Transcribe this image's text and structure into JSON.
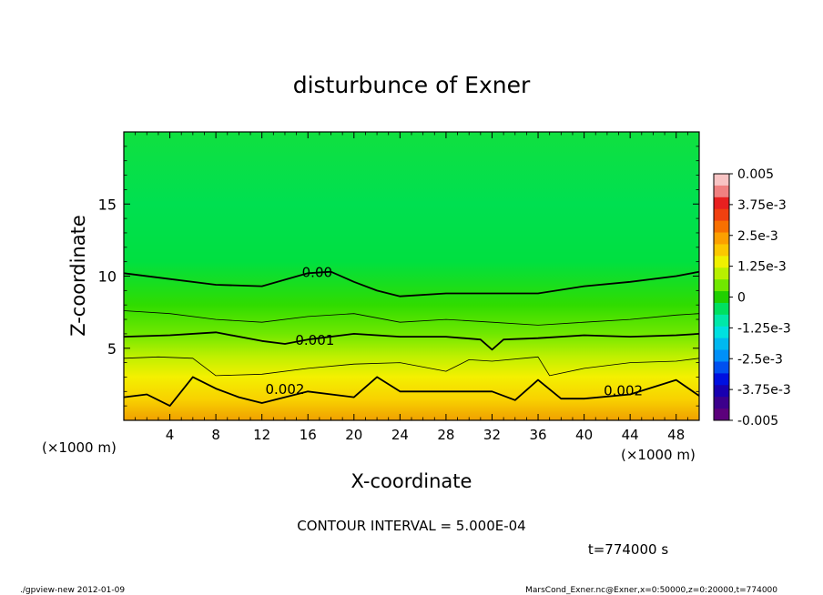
{
  "chart_data": {
    "type": "heatmap",
    "title": "disturbunce of Exner",
    "xlabel": "X-coordinate",
    "ylabel": "Z-coordinate",
    "x_unit": "(×1000 m)",
    "x_ticks": [
      4,
      8,
      12,
      16,
      20,
      24,
      28,
      32,
      36,
      40,
      44,
      48
    ],
    "y_ticks": [
      5,
      10,
      15
    ],
    "xlim": [
      0,
      50
    ],
    "ylim": [
      0,
      20
    ],
    "contour_interval_text": "CONTOUR INTERVAL = 5.000E-04",
    "time_text": "t=774000 s",
    "contour_labels": [
      {
        "text": "0.00",
        "x": 16.8,
        "z": 10.3
      },
      {
        "text": "0.001",
        "x": 16.6,
        "z": 5.6
      },
      {
        "text": "0.002",
        "x": 14.0,
        "z": 2.2
      },
      {
        "text": "0.002",
        "x": 43.4,
        "z": 2.1
      }
    ],
    "colorbar": {
      "labels": [
        "0.005",
        "3.75e-3",
        "2.5e-3",
        "1.25e-3",
        "0",
        "-1.25e-3",
        "-2.5e-3",
        "-3.75e-3",
        "-0.005"
      ],
      "colors": [
        "#f8c4c4",
        "#f08080",
        "#e82020",
        "#f04010",
        "#f87000",
        "#fca000",
        "#fcc800",
        "#f0f000",
        "#b8f000",
        "#70e800",
        "#20d000",
        "#00e060",
        "#00e8a8",
        "#00e0e0",
        "#00b8f0",
        "#0090f8",
        "#0050f0",
        "#0010e0",
        "#1800b0",
        "#3c008c",
        "#5c007c"
      ]
    },
    "contours": [
      {
        "level": 0.0,
        "weight": "bold",
        "x": [
          0,
          4,
          8,
          12,
          16,
          18,
          20,
          22,
          24,
          28,
          32,
          36,
          40,
          44,
          48,
          50
        ],
        "z": [
          10.2,
          9.8,
          9.4,
          9.3,
          10.2,
          10.3,
          9.6,
          9.0,
          8.6,
          8.8,
          8.8,
          8.8,
          9.3,
          9.6,
          10.0,
          10.3
        ]
      },
      {
        "level": 0.0005,
        "weight": "thin",
        "x": [
          0,
          4,
          8,
          12,
          16,
          20,
          24,
          28,
          32,
          36,
          40,
          44,
          48,
          50
        ],
        "z": [
          7.6,
          7.4,
          7.0,
          6.8,
          7.2,
          7.4,
          6.8,
          7.0,
          6.8,
          6.6,
          6.8,
          7.0,
          7.3,
          7.4
        ]
      },
      {
        "level": 0.001,
        "weight": "bold",
        "x": [
          0,
          4,
          8,
          12,
          14,
          16,
          20,
          24,
          28,
          31,
          32,
          33,
          36,
          40,
          44,
          48,
          50
        ],
        "z": [
          5.8,
          5.9,
          6.1,
          5.5,
          5.3,
          5.6,
          6.0,
          5.8,
          5.8,
          5.6,
          4.9,
          5.6,
          5.7,
          5.9,
          5.8,
          5.9,
          6.0
        ]
      },
      {
        "level": 0.0015,
        "weight": "thin",
        "x": [
          0,
          3,
          6,
          8,
          12,
          16,
          20,
          24,
          28,
          30,
          32,
          36,
          37,
          40,
          44,
          48,
          50
        ],
        "z": [
          4.3,
          4.4,
          4.3,
          3.1,
          3.2,
          3.6,
          3.9,
          4.0,
          3.4,
          4.2,
          4.1,
          4.4,
          3.1,
          3.6,
          4.0,
          4.1,
          4.3
        ]
      },
      {
        "level": 0.002,
        "weight": "bold",
        "x": [
          0,
          2,
          4,
          6,
          8,
          10,
          12,
          16,
          20,
          22,
          24,
          26,
          28,
          32,
          34,
          36,
          38,
          40,
          44,
          48,
          50
        ],
        "z": [
          1.6,
          1.8,
          1.0,
          3.0,
          2.2,
          1.6,
          1.2,
          2.0,
          1.6,
          3.0,
          2.0,
          2.0,
          2.0,
          2.0,
          1.4,
          2.8,
          1.5,
          1.5,
          1.8,
          2.8,
          1.7
        ]
      }
    ]
  },
  "footer": {
    "left": "./gpview-new   2012-01-09",
    "right": "MarsCond_Exner.nc@Exner,x=0:50000,z=0:20000,t=774000"
  }
}
